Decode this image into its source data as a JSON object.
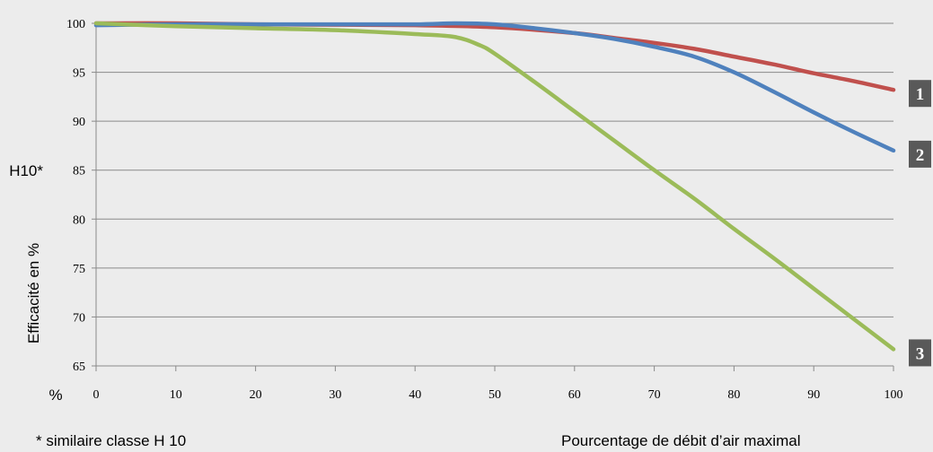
{
  "chart_data": {
    "type": "line",
    "ylabel": "Efficacité en  %",
    "xlabel": "Pourcentage de débit d’air maximal",
    "y_unit_label": "%",
    "footnote": "* similaire classe H 10",
    "h10_marker": {
      "label": "H10*",
      "y": 85
    },
    "xlim": [
      0,
      100
    ],
    "ylim": [
      65,
      100
    ],
    "xticks": [
      "0",
      "10",
      "20",
      "30",
      "40",
      "50",
      "60",
      "70",
      "80",
      "90",
      "100"
    ],
    "yticks": [
      "65",
      "70",
      "75",
      "80",
      "85",
      "90",
      "95",
      "100"
    ],
    "grid": true,
    "series": [
      {
        "name": "1",
        "color": "#c0504d",
        "x": [
          0,
          10,
          20,
          30,
          40,
          50,
          60,
          65,
          70,
          75,
          80,
          85,
          90,
          95,
          100
        ],
        "y": [
          100,
          100,
          99.9,
          99.85,
          99.8,
          99.6,
          99.0,
          98.5,
          98.0,
          97.4,
          96.6,
          95.8,
          94.9,
          94.1,
          93.2
        ]
      },
      {
        "name": "2",
        "color": "#4f81bd",
        "x": [
          0,
          10,
          20,
          30,
          40,
          45,
          50,
          55,
          60,
          65,
          70,
          75,
          80,
          85,
          90,
          95,
          100
        ],
        "y": [
          99.8,
          99.9,
          99.9,
          99.9,
          99.9,
          100,
          99.9,
          99.5,
          99.0,
          98.4,
          97.6,
          96.6,
          95.0,
          93.0,
          90.9,
          88.9,
          87.0
        ]
      },
      {
        "name": "3",
        "color": "#9bbb59",
        "x": [
          0,
          10,
          20,
          30,
          40,
          45,
          48,
          50,
          55,
          60,
          65,
          70,
          75,
          80,
          85,
          90,
          95,
          100
        ],
        "y": [
          100,
          99.7,
          99.5,
          99.3,
          98.9,
          98.6,
          97.8,
          96.9,
          94.0,
          91.0,
          88.0,
          85.0,
          82.1,
          79.0,
          76.0,
          72.9,
          69.8,
          66.7
        ]
      }
    ]
  }
}
